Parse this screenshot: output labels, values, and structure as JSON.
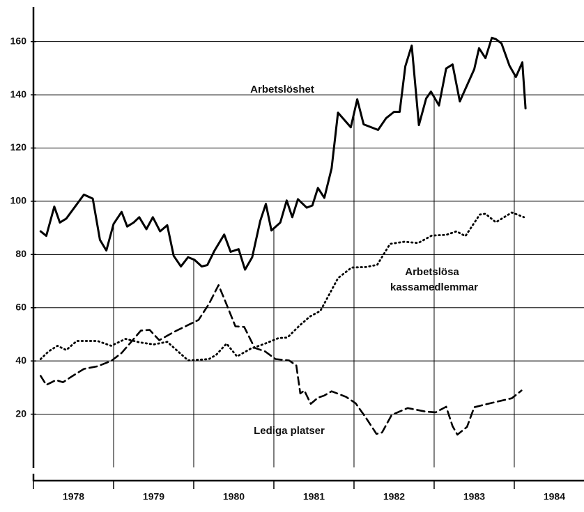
{
  "chart_data": {
    "type": "line",
    "xlim": [
      1978,
      1984.87
    ],
    "xticks": [
      1978,
      1979,
      1980,
      1981,
      1982,
      1983,
      1984
    ],
    "ylim": [
      0,
      173
    ],
    "yticks": [
      20,
      40,
      60,
      80,
      100,
      120,
      140,
      160
    ],
    "grid": true,
    "series": [
      {
        "name": "Arbetslöshet",
        "color": "#000000",
        "style": "solid",
        "x": [
          1978.09,
          1978.16,
          1978.26,
          1978.33,
          1978.41,
          1978.63,
          1978.74,
          1978.83,
          1978.91,
          1979.0,
          1979.1,
          1979.17,
          1979.25,
          1979.32,
          1979.41,
          1979.49,
          1979.58,
          1979.67,
          1979.75,
          1979.84,
          1979.93,
          1980.01,
          1980.1,
          1980.17,
          1980.26,
          1980.38,
          1980.46,
          1980.56,
          1980.64,
          1980.73,
          1980.83,
          1980.9,
          1980.97,
          1981.08,
          1981.16,
          1981.23,
          1981.3,
          1981.41,
          1981.48,
          1981.55,
          1981.63,
          1981.72,
          1981.8,
          1981.96,
          1982.04,
          1982.12,
          1982.3,
          1982.4,
          1982.5,
          1982.57,
          1982.64,
          1982.72,
          1982.81,
          1982.9,
          1982.96,
          1983.06,
          1983.15,
          1983.23,
          1983.32,
          1983.5,
          1983.56,
          1983.64,
          1983.72,
          1983.77,
          1983.84,
          1983.94,
          1984.02,
          1984.1,
          1984.14
        ],
        "values": [
          88.7,
          87,
          98,
          92,
          93.5,
          102.5,
          101,
          85.5,
          81.5,
          91.5,
          96,
          90.5,
          92,
          94,
          89.5,
          94,
          88.7,
          91,
          79.5,
          75.5,
          79,
          78,
          75.5,
          76,
          81.5,
          87.5,
          81,
          82,
          74.3,
          79,
          92.6,
          99,
          89,
          92,
          100.3,
          94,
          100.8,
          97.6,
          98.4,
          105,
          101.3,
          112.3,
          133.3,
          127.8,
          138.3,
          128.9,
          126.8,
          131.2,
          133.6,
          133.6,
          150.7,
          158.5,
          128.6,
          138.6,
          141.2,
          136,
          149.9,
          151.4,
          137.5,
          149.6,
          157.5,
          153.8,
          161.4,
          160.9,
          159.3,
          150.9,
          146.7,
          152.2,
          134.9
        ]
      },
      {
        "name": "Arbetslösa kassamedlemmar",
        "color": "#000000",
        "style": "dotted",
        "x": [
          1978.09,
          1978.19,
          1978.3,
          1978.41,
          1978.54,
          1978.8,
          1978.97,
          1979.15,
          1979.32,
          1979.5,
          1979.67,
          1979.93,
          1980.19,
          1980.28,
          1980.41,
          1980.54,
          1980.71,
          1980.89,
          1981.06,
          1981.17,
          1981.32,
          1981.45,
          1981.58,
          1981.67,
          1981.8,
          1981.97,
          1982.15,
          1982.29,
          1982.45,
          1982.63,
          1982.8,
          1982.97,
          1983.15,
          1983.28,
          1983.39,
          1983.57,
          1983.64,
          1983.77,
          1983.97,
          1984.12
        ],
        "values": [
          40.7,
          43.6,
          45.7,
          44.1,
          47.5,
          47.5,
          45.7,
          48.3,
          47,
          46.2,
          47.2,
          40.2,
          40.7,
          42.3,
          46.5,
          41.7,
          44.6,
          46.5,
          48.6,
          48.8,
          53.3,
          56.7,
          58.8,
          63.8,
          71.1,
          75.1,
          75.3,
          76.1,
          84,
          84.8,
          84.3,
          87.1,
          87.4,
          88.7,
          86.9,
          95,
          95.3,
          92.1,
          95.8,
          94
        ]
      },
      {
        "name": "Lediga platser",
        "color": "#000000",
        "style": "dashed",
        "x": [
          1978.09,
          1978.16,
          1978.28,
          1978.37,
          1978.49,
          1978.63,
          1978.8,
          1978.97,
          1979.1,
          1979.23,
          1979.34,
          1979.45,
          1979.57,
          1979.76,
          1979.93,
          1980.06,
          1980.19,
          1980.31,
          1980.39,
          1980.52,
          1980.63,
          1980.76,
          1980.89,
          1981.02,
          1981.19,
          1981.28,
          1981.33,
          1981.38,
          1981.46,
          1981.55,
          1981.63,
          1981.72,
          1981.9,
          1982.02,
          1982.15,
          1982.28,
          1982.35,
          1982.47,
          1982.67,
          1982.89,
          1983.02,
          1983.15,
          1983.23,
          1983.29,
          1983.41,
          1983.5,
          1983.67,
          1983.97,
          1984.09
        ],
        "values": [
          34.4,
          31,
          32.8,
          32,
          34.4,
          37,
          38,
          40,
          43,
          47.5,
          51.4,
          51.7,
          47.8,
          51,
          53.5,
          55.4,
          61.4,
          68.5,
          62.7,
          53,
          52.8,
          44.9,
          43.6,
          40.7,
          40.2,
          38.3,
          27.8,
          28.9,
          23.9,
          26.2,
          27,
          28.6,
          26.5,
          24.1,
          18.6,
          12.6,
          13.1,
          19.7,
          22.3,
          21,
          20.7,
          22.8,
          15.5,
          12.3,
          15.2,
          22.6,
          23.9,
          26,
          28.9
        ]
      }
    ]
  }
}
